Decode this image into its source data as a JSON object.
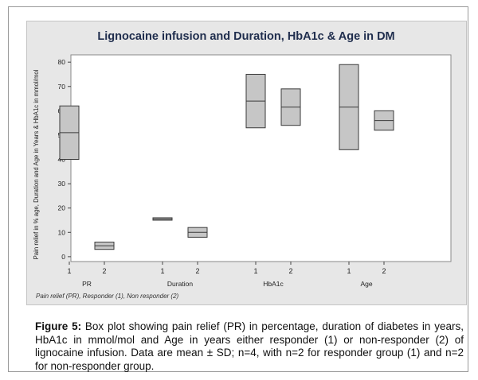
{
  "chart_data": {
    "type": "boxplot",
    "title": "Lignocaine infusion and Duration, HbA1c & Age in DM",
    "ylabel": "Pain relief in % age, Duration and Age in Years & HbA1c in mmol/mol",
    "ylim": [
      -2,
      83
    ],
    "yticks": [
      "0",
      "10",
      "20",
      "30",
      "40",
      "50",
      "60",
      "70",
      "80"
    ],
    "grid": false,
    "footnote": "Pain relief (PR), Responder (1), Non responder (2)",
    "groups": [
      {
        "name": "PR",
        "boxes": [
          {
            "label": "1",
            "low": 40,
            "mid": 51,
            "high": 62
          },
          {
            "label": "2",
            "low": 3,
            "mid": 4.5,
            "high": 6
          }
        ]
      },
      {
        "name": "Duration",
        "boxes": [
          {
            "label": "1",
            "low": 15,
            "mid": 15.5,
            "high": 16
          },
          {
            "label": "2",
            "low": 8,
            "mid": 10,
            "high": 12
          }
        ]
      },
      {
        "name": "HbA1c",
        "boxes": [
          {
            "label": "1",
            "low": 53,
            "mid": 64,
            "high": 75
          },
          {
            "label": "2",
            "low": 54,
            "mid": 61.5,
            "high": 69
          }
        ]
      },
      {
        "name": "Age",
        "boxes": [
          {
            "label": "1",
            "low": 44,
            "mid": 61.5,
            "high": 79
          },
          {
            "label": "2",
            "low": 52,
            "mid": 56,
            "high": 60
          }
        ]
      }
    ],
    "colors": {
      "box_fill": "#c6c6c6",
      "box_stroke": "#3a3a3a",
      "plot_bg": "#ffffff",
      "panel_bg": "#e7e7e7",
      "title_color": "#1f2d4d"
    }
  },
  "caption": {
    "figure_label": "Figure 5:",
    "text": " Box plot showing pain relief (PR) in percentage, duration of diabetes in years, HbA1c in mmol/mol and Age in years either responder (1) or non-responder (2) of lignocaine infusion. Data are mean ± SD; n=4, with n=2 for responder group (1) and n=2 for non-responder group."
  }
}
